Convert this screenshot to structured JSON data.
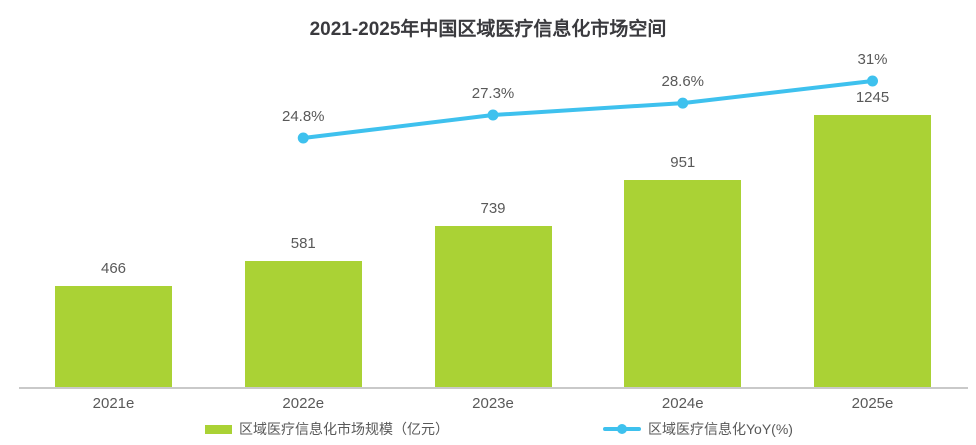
{
  "title": "2021-2025年中国区域医疗信息化市场空间",
  "chart_data": {
    "type": "bar",
    "categories": [
      "2021e",
      "2022e",
      "2023e",
      "2024e",
      "2025e"
    ],
    "series": [
      {
        "name": "区域医疗信息化市场规模（亿元）",
        "type": "bar",
        "values": [
          466,
          581,
          739,
          951,
          1245
        ],
        "data_labels": [
          "466",
          "581",
          "739",
          "951",
          "1245"
        ],
        "color": "#aad235"
      },
      {
        "name": "区域医疗信息化YoY(%)",
        "type": "line",
        "values": [
          null,
          24.8,
          27.3,
          28.6,
          31
        ],
        "data_labels": [
          "",
          "24.8%",
          "27.3%",
          "28.6%",
          "31%"
        ],
        "color": "#3ec1ee"
      }
    ],
    "xlabel": "",
    "ylabel": "",
    "ylim": [
      0,
      1500
    ],
    "grid": false,
    "legend_position": "bottom"
  },
  "colors": {
    "bar": "#aad235",
    "line": "#3ec1ee",
    "axis": "#c9c9c9",
    "label_text": "#595959",
    "title_text": "#3a3a3e"
  }
}
